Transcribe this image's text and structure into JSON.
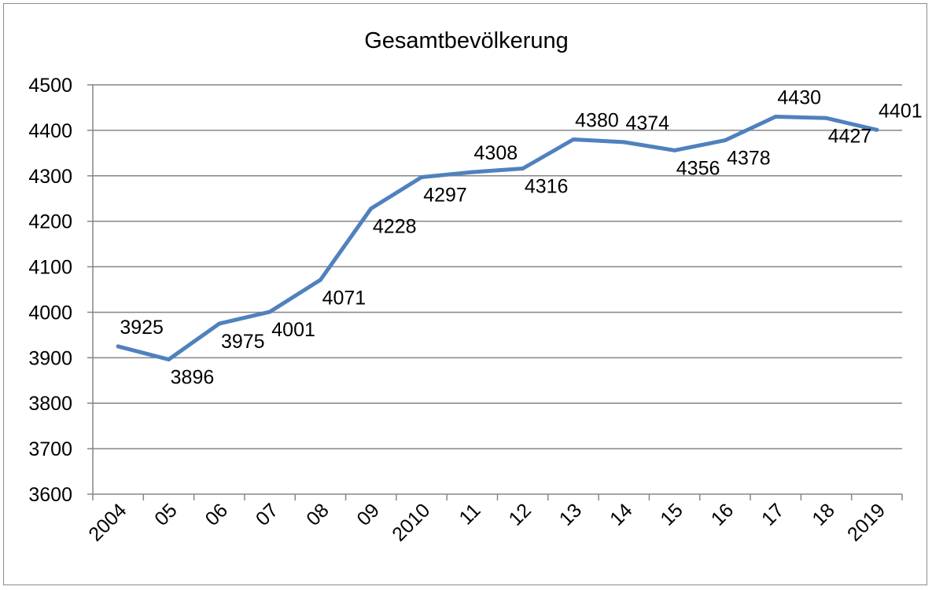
{
  "chart_data": {
    "type": "line",
    "title": "Gesamtbevölkerung",
    "xlabel": "",
    "ylabel": "",
    "categories": [
      "2004",
      "05",
      "06",
      "07",
      "08",
      "09",
      "2010",
      "11",
      "12",
      "13",
      "14",
      "15",
      "16",
      "17",
      "18",
      "2019"
    ],
    "series": [
      {
        "values": [
          3925,
          3896,
          3975,
          4001,
          4071,
          4228,
          4297,
          4308,
          4316,
          4380,
          4374,
          4356,
          4378,
          4430,
          4427,
          4401
        ]
      }
    ],
    "data_labels": [
      "3925",
      "3896",
      "3975",
      "4001",
      "4071",
      "4228",
      "4297",
      "4308",
      "4316",
      "4380",
      "4374",
      "4356",
      "4378",
      "4430",
      "4427",
      "4401"
    ],
    "ylim": [
      3600,
      4500
    ],
    "yticks": [
      3600,
      3700,
      3800,
      3900,
      4000,
      4100,
      4200,
      4300,
      4400,
      4500
    ],
    "ytick_labels": [
      "3600",
      "3700",
      "3800",
      "3900",
      "4000",
      "4100",
      "4200",
      "4300",
      "4400",
      "4500"
    ],
    "grid": true,
    "legend": "none",
    "colors": {
      "line": "#4f81bd",
      "grid": "#868686",
      "axis": "#868686",
      "frame": "#8c8c8c"
    }
  }
}
